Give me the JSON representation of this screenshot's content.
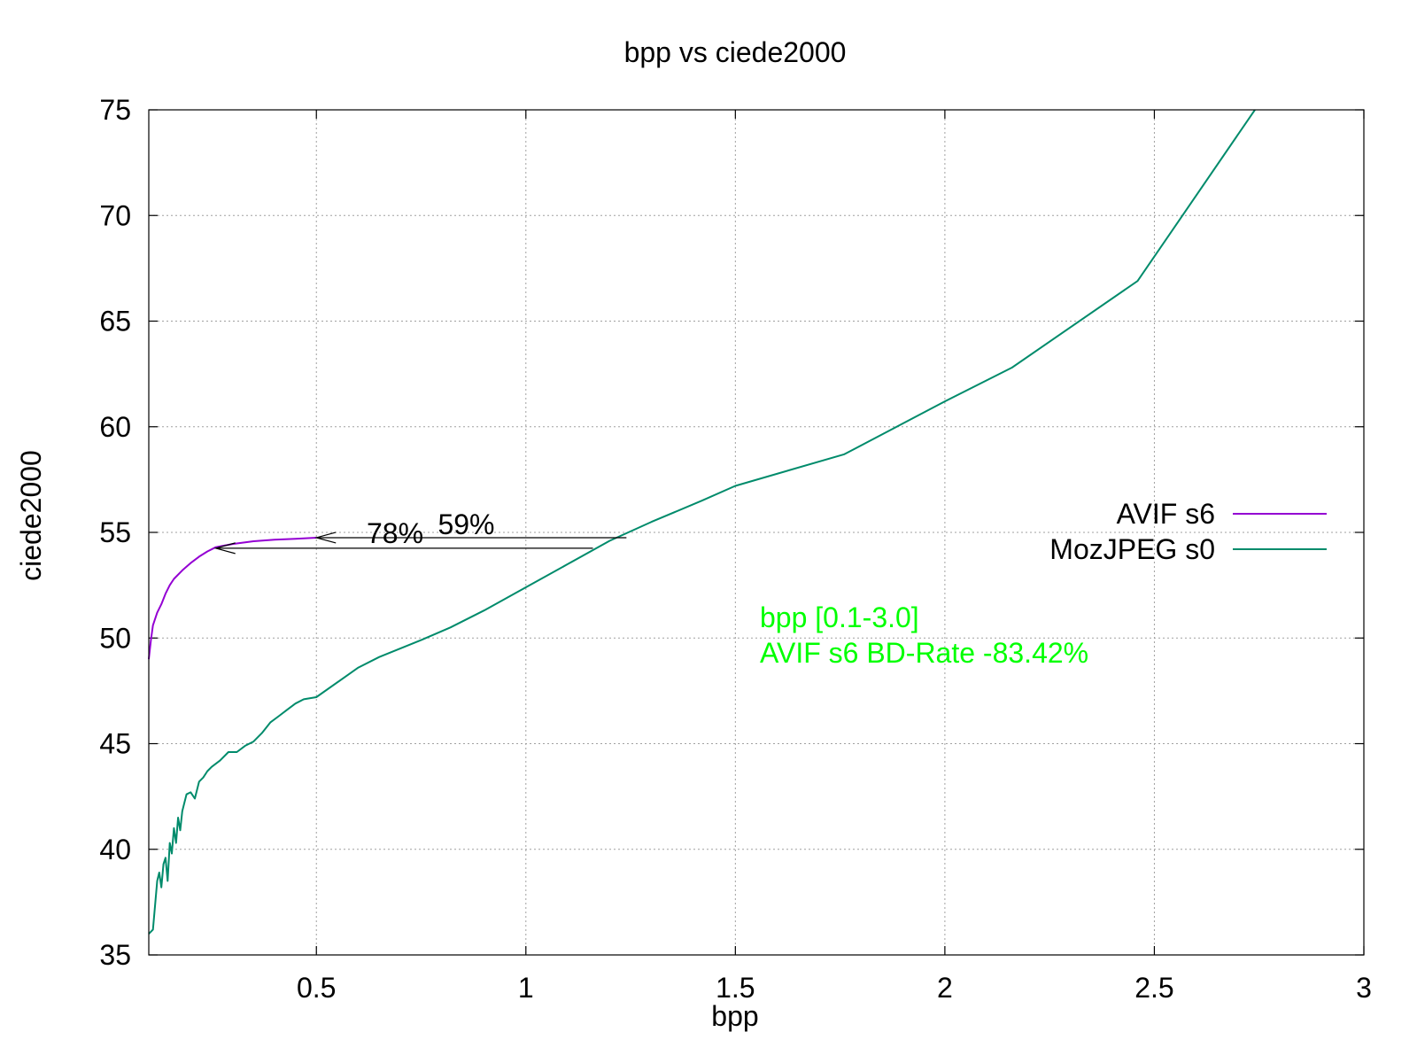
{
  "chart_data": {
    "type": "line",
    "title": "bpp vs ciede2000",
    "xlabel": "bpp",
    "ylabel": "ciede2000",
    "xlim": [
      0.1,
      3.0
    ],
    "ylim": [
      35,
      75
    ],
    "xticks": [
      0.5,
      1,
      1.5,
      2,
      2.5,
      3
    ],
    "xtick_labels": [
      "0.5",
      "1",
      "1.5",
      "2",
      "2.5",
      "3"
    ],
    "yticks": [
      35,
      40,
      45,
      50,
      55,
      60,
      65,
      70,
      75
    ],
    "ytick_labels": [
      "35",
      "40",
      "45",
      "50",
      "55",
      "60",
      "65",
      "70",
      "75"
    ],
    "grid": true,
    "legend_position": "right",
    "series": [
      {
        "name": "AVIF s6",
        "color": "#9400d3",
        "x": [
          0.1,
          0.105,
          0.11,
          0.12,
          0.13,
          0.14,
          0.15,
          0.16,
          0.18,
          0.2,
          0.22,
          0.24,
          0.26,
          0.3,
          0.35,
          0.4,
          0.45,
          0.5
        ],
        "y": [
          49.0,
          49.9,
          50.6,
          51.2,
          51.6,
          52.1,
          52.5,
          52.8,
          53.2,
          53.55,
          53.85,
          54.1,
          54.3,
          54.45,
          54.58,
          54.65,
          54.7,
          54.75
        ]
      },
      {
        "name": "MozJPEG s0",
        "color": "#008b6b",
        "x": [
          0.1,
          0.11,
          0.12,
          0.125,
          0.13,
          0.135,
          0.14,
          0.145,
          0.15,
          0.155,
          0.16,
          0.165,
          0.17,
          0.175,
          0.18,
          0.185,
          0.19,
          0.2,
          0.21,
          0.22,
          0.23,
          0.24,
          0.25,
          0.27,
          0.29,
          0.31,
          0.33,
          0.35,
          0.37,
          0.39,
          0.41,
          0.43,
          0.45,
          0.47,
          0.5,
          0.6,
          0.65,
          0.75,
          0.82,
          0.9,
          1.0,
          1.1,
          1.2,
          1.3,
          1.42,
          1.5,
          1.76,
          2.0,
          2.16,
          2.46,
          2.74
        ],
        "y": [
          36.0,
          36.2,
          38.5,
          38.9,
          38.2,
          39.3,
          39.6,
          38.5,
          40.3,
          39.8,
          41.0,
          40.3,
          41.5,
          40.9,
          41.8,
          42.2,
          42.6,
          42.7,
          42.4,
          43.2,
          43.4,
          43.7,
          43.9,
          44.2,
          44.6,
          44.6,
          44.9,
          45.1,
          45.5,
          46.0,
          46.3,
          46.6,
          46.9,
          47.1,
          47.2,
          48.6,
          49.1,
          49.9,
          50.5,
          51.3,
          52.4,
          53.5,
          54.6,
          55.5,
          56.5,
          57.2,
          58.7,
          61.2,
          62.8,
          66.9,
          75.0
        ]
      }
    ],
    "annotations": [
      {
        "text": "78%",
        "from_x": 1.16,
        "to_x": 0.26,
        "y": 54.25
      },
      {
        "text": "59%",
        "from_x": 1.24,
        "to_x": 0.5,
        "y": 54.75
      }
    ],
    "info_lines": [
      "bpp [0.1-3.0]",
      "AVIF s6 BD-Rate -83.42%"
    ],
    "info_color": "#00ff00"
  }
}
